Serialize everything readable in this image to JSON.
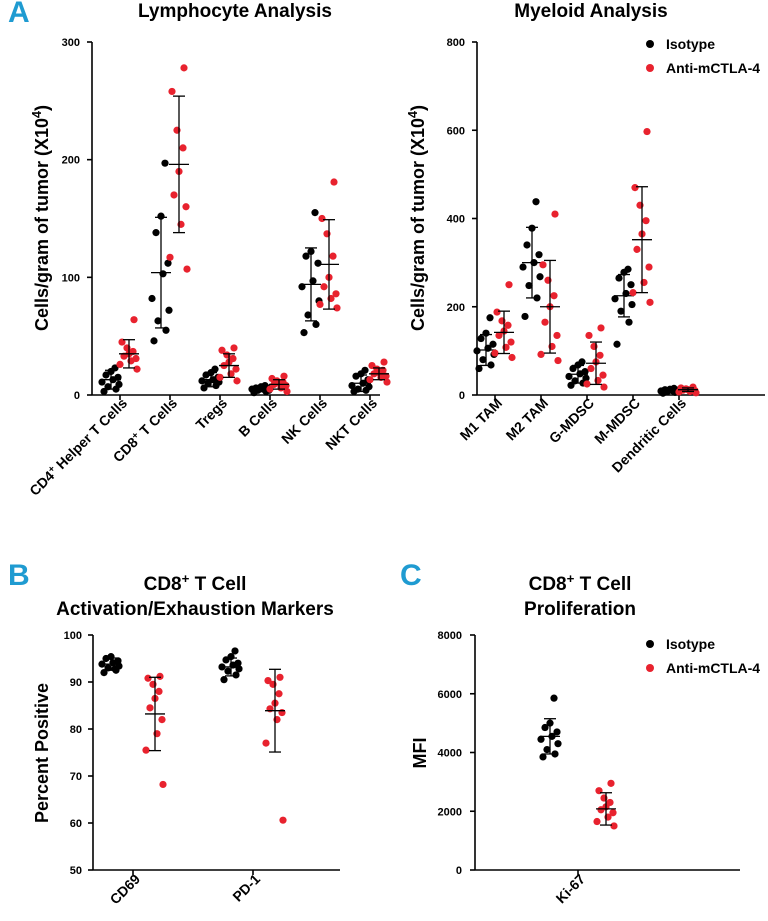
{
  "colors": {
    "isotype": "#000000",
    "treated": "#e8222e",
    "panel_letter": "#1f9bd1"
  },
  "legend": {
    "isotype": "Isotype",
    "treated": "Anti-mCTLA-4"
  },
  "panels": {
    "A": {
      "letter": "A"
    },
    "B": {
      "letter": "B"
    },
    "C": {
      "letter": "C"
    }
  },
  "chart_data": [
    {
      "id": "lymphocyte",
      "type": "scatter",
      "title": "Lymphocyte  Analysis",
      "ylabel": "Cells/gram of tumor (X10",
      "ylabel_sup": "4",
      "ylabel_end": ")",
      "ylim": [
        0,
        300
      ],
      "yticks": [
        0,
        100,
        200,
        300
      ],
      "categories": [
        {
          "label": "CD4",
          "sup": "+",
          "rest": " Helper T Cells"
        },
        {
          "label": "CD8",
          "sup": "+",
          "rest": " T Cells"
        },
        {
          "label": "Tregs",
          "sup": "",
          "rest": ""
        },
        {
          "label": "B Cells",
          "sup": "",
          "rest": ""
        },
        {
          "label": "NK Cells",
          "sup": "",
          "rest": ""
        },
        {
          "label": "NKT Cells",
          "sup": "",
          "rest": ""
        }
      ],
      "series": [
        {
          "name": "Isotype",
          "group": [
            {
              "mean": 13,
              "sd": 8,
              "points": [
                3,
                5,
                7,
                9,
                11,
                13,
                15,
                17,
                20,
                23
              ]
            },
            {
              "mean": 104,
              "sd": 47,
              "points": [
                46,
                55,
                63,
                72,
                82,
                103,
                112,
                138,
                152,
                197
              ]
            },
            {
              "mean": 13,
              "sd": 6,
              "points": [
                6,
                8,
                10,
                11,
                12,
                13,
                15,
                17,
                19,
                22
              ]
            },
            {
              "mean": 5,
              "sd": 2,
              "points": [
                2,
                3,
                4,
                4,
                5,
                5,
                6,
                6,
                7,
                8
              ]
            },
            {
              "mean": 94,
              "sd": 31,
              "points": [
                53,
                60,
                68,
                80,
                92,
                97,
                112,
                118,
                122,
                155
              ]
            },
            {
              "mean": 10,
              "sd": 7,
              "points": [
                3,
                4,
                5,
                7,
                8,
                10,
                13,
                16,
                18,
                21
              ]
            }
          ]
        },
        {
          "name": "Anti-mCTLA-4",
          "group": [
            {
              "mean": 35,
              "sd": 12,
              "points": [
                22,
                26,
                29,
                31,
                33,
                35,
                37,
                40,
                45,
                64
              ]
            },
            {
              "mean": 196,
              "sd": 58,
              "points": [
                107,
                117,
                145,
                160,
                170,
                190,
                210,
                225,
                258,
                278
              ]
            },
            {
              "mean": 25,
              "sd": 10,
              "points": [
                12,
                15,
                18,
                22,
                25,
                28,
                31,
                34,
                38,
                40
              ]
            },
            {
              "mean": 9,
              "sd": 4,
              "points": [
                3,
                5,
                6,
                8,
                9,
                10,
                11,
                12,
                14,
                16
              ]
            },
            {
              "mean": 111,
              "sd": 38,
              "points": [
                74,
                77,
                82,
                86,
                92,
                100,
                118,
                137,
                150,
                181
              ]
            },
            {
              "mean": 18,
              "sd": 5,
              "points": [
                11,
                13,
                15,
                16,
                18,
                19,
                21,
                22,
                25,
                28
              ]
            }
          ]
        }
      ]
    },
    {
      "id": "myeloid",
      "type": "scatter",
      "title": "Myeloid Analysis",
      "ylabel": "Cells/gram of tumor (X10",
      "ylabel_sup": "4",
      "ylabel_end": ")",
      "ylim": [
        0,
        800
      ],
      "yticks": [
        0,
        200,
        400,
        600,
        800
      ],
      "legend_position": "top-right",
      "categories": [
        {
          "label": "M1 TAM",
          "sup": "",
          "rest": ""
        },
        {
          "label": "M2 TAM",
          "sup": "",
          "rest": ""
        },
        {
          "label": "G-MDSC",
          "sup": "",
          "rest": ""
        },
        {
          "label": "M-MDSC",
          "sup": "",
          "rest": ""
        },
        {
          "label": "Dendritic Cells",
          "sup": "",
          "rest": ""
        }
      ],
      "series": [
        {
          "name": "Isotype",
          "group": [
            {
              "mean": 102,
              "sd": 35,
              "points": [
                60,
                68,
                80,
                92,
                100,
                106,
                115,
                128,
                140,
                175
              ]
            },
            {
              "mean": 300,
              "sd": 80,
              "points": [
                178,
                220,
                248,
                268,
                290,
                300,
                318,
                340,
                378,
                438
              ]
            },
            {
              "mean": 47,
              "sd": 20,
              "points": [
                22,
                27,
                32,
                38,
                42,
                48,
                53,
                60,
                68,
                75
              ]
            },
            {
              "mean": 225,
              "sd": 48,
              "points": [
                115,
                165,
                190,
                205,
                218,
                230,
                250,
                265,
                278,
                285
              ]
            },
            {
              "mean": 10,
              "sd": 4,
              "points": [
                4,
                6,
                7,
                8,
                9,
                10,
                11,
                12,
                13,
                15
              ]
            }
          ]
        },
        {
          "name": "Anti-mCTLA-4",
          "group": [
            {
              "mean": 142,
              "sd": 48,
              "points": [
                85,
                95,
                108,
                120,
                135,
                145,
                158,
                168,
                188,
                250
              ]
            },
            {
              "mean": 200,
              "sd": 105,
              "points": [
                78,
                92,
                110,
                135,
                165,
                200,
                225,
                260,
                295,
                410
              ]
            },
            {
              "mean": 72,
              "sd": 48,
              "points": [
                18,
                25,
                33,
                45,
                60,
                75,
                90,
                110,
                135,
                152
              ]
            },
            {
              "mean": 352,
              "sd": 120,
              "points": [
                210,
                232,
                255,
                290,
                330,
                365,
                395,
                430,
                470,
                597
              ]
            },
            {
              "mean": 12,
              "sd": 4,
              "points": [
                5,
                7,
                8,
                10,
                11,
                12,
                13,
                14,
                16,
                18
              ]
            }
          ]
        }
      ]
    },
    {
      "id": "activation",
      "type": "scatter",
      "title_line1": "CD8",
      "title_sup": "+",
      "title_line1_rest": " T Cell",
      "title_line2": "Activation/Exhaustion Markers",
      "ylabel": "Percent Positive",
      "ylim": [
        50,
        100
      ],
      "yticks": [
        50,
        60,
        70,
        80,
        90,
        100
      ],
      "categories": [
        {
          "label": "CD69",
          "sup": "",
          "rest": ""
        },
        {
          "label": "PD-1",
          "sup": "",
          "rest": ""
        }
      ],
      "series": [
        {
          "name": "Isotype",
          "group": [
            {
              "mean": 93.8,
              "sd": 1.3,
              "points": [
                92.0,
                92.5,
                93.0,
                93.4,
                93.8,
                94.1,
                94.5,
                95.0,
                95.4,
                92.8
              ]
            },
            {
              "mean": 93.2,
              "sd": 1.9,
              "points": [
                90.5,
                91.5,
                92.3,
                92.8,
                93.2,
                93.6,
                94.0,
                94.7,
                95.4,
                96.6
              ]
            }
          ]
        },
        {
          "name": "Anti-mCTLA-4",
          "group": [
            {
              "mean": 83.2,
              "sd": 7.8,
              "points": [
                68.2,
                75.5,
                79.0,
                82.0,
                84.5,
                86.5,
                88.0,
                89.5,
                90.8,
                91.2
              ]
            },
            {
              "mean": 83.9,
              "sd": 8.8,
              "points": [
                60.6,
                77.0,
                82.0,
                83.5,
                84.3,
                85.5,
                87.5,
                89.5,
                90.3,
                91.0
              ]
            }
          ]
        }
      ]
    },
    {
      "id": "proliferation",
      "type": "scatter",
      "title_line1": "CD8",
      "title_sup": "+",
      "title_line1_rest": " T Cell",
      "title_line2": "Proliferation",
      "ylabel": "MFI",
      "ylim": [
        0,
        8000
      ],
      "yticks": [
        0,
        2000,
        4000,
        6000,
        8000
      ],
      "legend_position": "top-right",
      "categories": [
        {
          "label": "Ki-67",
          "sup": "",
          "rest": ""
        }
      ],
      "series": [
        {
          "name": "Isotype",
          "group": [
            {
              "mean": 4550,
              "sd": 600,
              "points": [
                3850,
                3950,
                4100,
                4300,
                4450,
                4550,
                4700,
                4850,
                5000,
                5850
              ]
            }
          ]
        },
        {
          "name": "Anti-mCTLA-4",
          "group": [
            {
              "mean": 2080,
              "sd": 550,
              "points": [
                1500,
                1650,
                1800,
                1950,
                2050,
                2150,
                2300,
                2450,
                2700,
                2950
              ]
            }
          ]
        }
      ]
    }
  ]
}
